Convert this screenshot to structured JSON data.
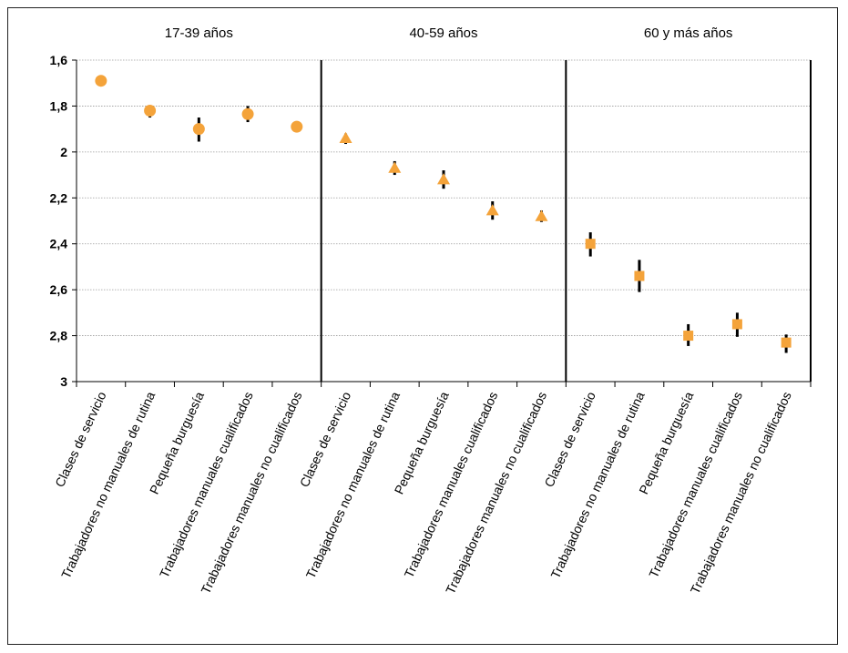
{
  "chart_data": {
    "type": "scatter",
    "title": "",
    "xlabel": "",
    "ylabel": "",
    "y_axis": {
      "inverted": true,
      "ylim": [
        1.6,
        3
      ],
      "ticks": [
        "1,6",
        "1,8",
        "2",
        "2,2",
        "2,4",
        "2,6",
        "2,8",
        "3"
      ],
      "tick_values": [
        1.6,
        1.8,
        2.0,
        2.2,
        2.4,
        2.6,
        2.8,
        3.0
      ],
      "grid": true
    },
    "categories": [
      "Clases de servicio",
      "Trabajadores no manuales de rutina",
      "Pequeña burguesía",
      "Trabajadores manuales cualificados",
      "Trabajadores manuales no cualificados"
    ],
    "marker_color": "#F4A33A",
    "error_bar_color": "#000000",
    "groups": [
      {
        "label": "17-39 años",
        "marker": "circle",
        "values": [
          1.69,
          1.82,
          1.9,
          1.835,
          1.89
        ],
        "err_low": [
          1.67,
          1.8,
          1.85,
          1.8,
          1.87
        ],
        "err_high": [
          1.71,
          1.85,
          1.955,
          1.87,
          1.91
        ]
      },
      {
        "label": "40-59 años",
        "marker": "triangle",
        "values": [
          1.94,
          2.07,
          2.12,
          2.255,
          2.28
        ],
        "err_low": [
          1.92,
          2.04,
          2.08,
          2.215,
          2.255
        ],
        "err_high": [
          1.965,
          2.1,
          2.16,
          2.295,
          2.305
        ]
      },
      {
        "label": "60 y más años",
        "marker": "square",
        "values": [
          2.4,
          2.54,
          2.8,
          2.75,
          2.83
        ],
        "err_low": [
          2.35,
          2.47,
          2.75,
          2.7,
          2.795
        ],
        "err_high": [
          2.455,
          2.61,
          2.845,
          2.805,
          2.875
        ]
      }
    ]
  }
}
